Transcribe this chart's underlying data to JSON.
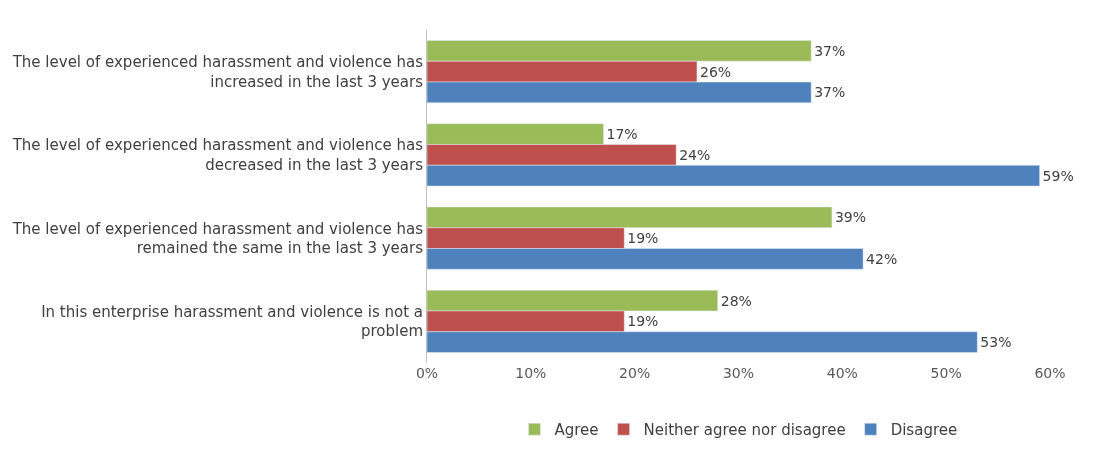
{
  "chart_data": {
    "type": "bar",
    "orientation": "horizontal",
    "categories": [
      "The level of experienced harassment and violence has increased in the last 3 years",
      "The level of experienced harassment and violence has decreased in the last 3 years",
      "The level of experienced harassment and violence has remained the same in the last 3 years",
      "In this enterprise harassment and violence is not a problem"
    ],
    "series": [
      {
        "name": "Agree",
        "color": "#9bbb59",
        "values": [
          37,
          17,
          39,
          28
        ],
        "value_labels": [
          "37%",
          "17%",
          "39%",
          "28%"
        ]
      },
      {
        "name": "Neither agree nor disagree",
        "color": "#c0504d",
        "values": [
          26,
          24,
          19,
          19
        ],
        "value_labels": [
          "26%",
          "24%",
          "19%",
          "19%"
        ]
      },
      {
        "name": "Disagree",
        "color": "#4f81bd",
        "values": [
          37,
          59,
          42,
          53
        ],
        "value_labels": [
          "37%",
          "59%",
          "42%",
          "53%"
        ]
      }
    ],
    "xlim": [
      0,
      60
    ],
    "xticks": [
      {
        "value": 0,
        "label": "0%"
      },
      {
        "value": 10,
        "label": "10%"
      },
      {
        "value": 20,
        "label": "20%"
      },
      {
        "value": 30,
        "label": "30%"
      },
      {
        "value": 40,
        "label": "40%"
      },
      {
        "value": 50,
        "label": "50%"
      },
      {
        "value": 60,
        "label": "60%"
      }
    ],
    "grid": false,
    "legend": "bottom"
  }
}
